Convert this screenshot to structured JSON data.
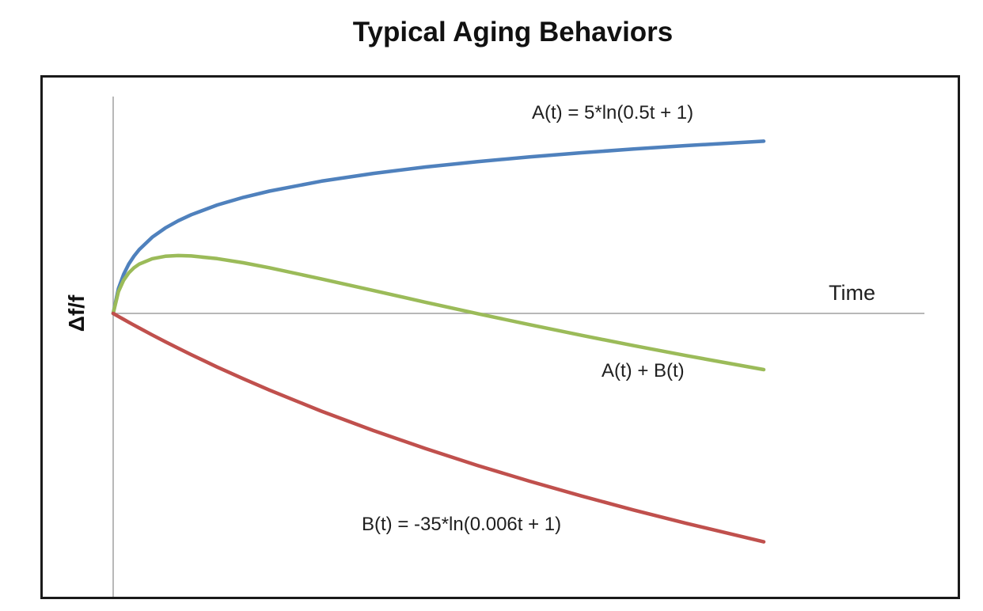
{
  "chart_data": {
    "type": "line",
    "title": "Typical Aging Behaviors",
    "xlabel": "Time",
    "ylabel": "Δf/f",
    "x_range": [
      0,
      250
    ],
    "y_range": [
      -40,
      30.5
    ],
    "grid": false,
    "tick_labels": "none",
    "legend_position": "inline-annotations",
    "axis_color": "#a0a0a0",
    "frame_color": "#1a1a1a",
    "series": [
      {
        "id": "curve-a",
        "name": "A(t)",
        "label": "A(t) = 5*ln(0.5t + 1)",
        "formula": "A(t) = 5*ln(0.5t + 1)",
        "color": "#4f81bd",
        "t": [
          0,
          2,
          4,
          6,
          8,
          10,
          15,
          20,
          25,
          30,
          40,
          50,
          60,
          80,
          100,
          120,
          140,
          160,
          180,
          200,
          220,
          250
        ],
        "values": [
          0,
          3.47,
          5.49,
          6.93,
          8.05,
          8.96,
          10.7,
          11.99,
          13.01,
          13.86,
          15.22,
          16.29,
          17.17,
          18.57,
          19.66,
          20.55,
          21.31,
          21.97,
          22.55,
          23.08,
          23.55,
          24.18
        ]
      },
      {
        "id": "curve-a-plus-b",
        "name": "A(t)+B(t)",
        "label": "A(t) + B(t)",
        "formula": "A(t) + B(t)",
        "color": "#9bbb59",
        "t": [
          0,
          2,
          4,
          6,
          8,
          10,
          15,
          20,
          25,
          30,
          40,
          50,
          60,
          80,
          100,
          120,
          140,
          160,
          180,
          200,
          220,
          250
        ],
        "values": [
          0,
          3.05,
          4.66,
          5.69,
          6.41,
          6.92,
          7.68,
          8.02,
          8.12,
          8.07,
          7.69,
          7.11,
          6.41,
          4.85,
          3.21,
          1.57,
          -0.03,
          -1.58,
          -3.08,
          -4.52,
          -5.91,
          -7.89
        ]
      },
      {
        "id": "curve-b",
        "name": "B(t)",
        "label": "B(t) = -35*ln(0.006t + 1)",
        "formula": "B(t) = -35*ln(0.006t + 1)",
        "color": "#c0504d",
        "t": [
          0,
          2,
          4,
          6,
          8,
          10,
          15,
          20,
          25,
          30,
          40,
          50,
          60,
          80,
          100,
          120,
          140,
          160,
          180,
          200,
          220,
          250
        ],
        "values": [
          0,
          -0.42,
          -0.83,
          -1.24,
          -1.64,
          -2.04,
          -3.02,
          -3.97,
          -4.89,
          -5.79,
          -7.53,
          -9.18,
          -10.76,
          -13.72,
          -16.45,
          -18.98,
          -21.34,
          -23.55,
          -25.63,
          -27.6,
          -29.46,
          -32.07
        ]
      }
    ]
  }
}
